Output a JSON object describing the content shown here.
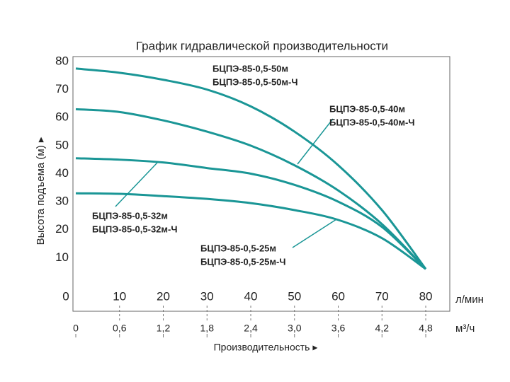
{
  "chart_data": {
    "type": "line",
    "title": "График гидравлической производительности",
    "y_label": "Высота подъема (м) ▸",
    "x_label": "Производительность ▸",
    "x_unit": "л/мин",
    "x2_unit": "м³/ч",
    "x": [
      0,
      10,
      20,
      30,
      40,
      50,
      60,
      70,
      80
    ],
    "xlim": [
      0,
      85.5
    ],
    "xticks": [
      0,
      10,
      20,
      30,
      40,
      50,
      60,
      70,
      80
    ],
    "x2lim": [
      0,
      5.13
    ],
    "x2ticks": [
      0,
      {
        "value": 0.6,
        "label": "0,6"
      },
      {
        "value": 1.2,
        "label": "1,2"
      },
      {
        "value": 1.8,
        "label": "1,8"
      },
      {
        "value": 2.4,
        "label": "2,4"
      },
      {
        "value": 3.0,
        "label": "3,0"
      },
      {
        "value": 3.6,
        "label": "3,6"
      },
      {
        "value": 4.2,
        "label": "4,2"
      },
      {
        "value": 4.8,
        "label": "4,8"
      }
    ],
    "ylim": [
      0,
      80
    ],
    "yticks": [
      10,
      20,
      30,
      40,
      50,
      60,
      70,
      80
    ],
    "grid": true,
    "series": [
      {
        "name": "БЦПЭ-85-0,5-50м",
        "color": "#1a9696",
        "values": [
          77.5,
          76,
          73.5,
          70,
          64,
          55,
          43,
          27,
          6
        ]
      },
      {
        "name": "БЦПЭ-85-0,5-40м",
        "color": "#1a9696",
        "values": [
          63,
          62,
          59,
          55,
          50,
          43,
          34,
          22,
          6
        ]
      },
      {
        "name": "БЦПЭ-85-0,5-32м",
        "color": "#1a9696",
        "values": [
          45.5,
          45,
          44,
          42,
          40,
          36,
          30,
          21,
          6
        ]
      },
      {
        "name": "БЦПЭ-85-0,5-25м",
        "color": "#1a9696",
        "values": [
          33,
          32.8,
          32,
          31,
          29.5,
          27,
          23.5,
          17,
          6
        ]
      }
    ],
    "annotations": [
      [
        "БЦПЭ-85-0,5-50м",
        "БЦПЭ-85-0,5-50м-Ч"
      ],
      [
        "БЦПЭ-85-0,5-40м",
        "БЦПЭ-85-0,5-40м-Ч"
      ],
      [
        "БЦПЭ-85-0,5-32м",
        "БЦПЭ-85-0,5-32м-Ч"
      ],
      [
        "БЦПЭ-85-0,5-25м",
        "БЦПЭ-85-0,5-25м-Ч"
      ]
    ]
  }
}
